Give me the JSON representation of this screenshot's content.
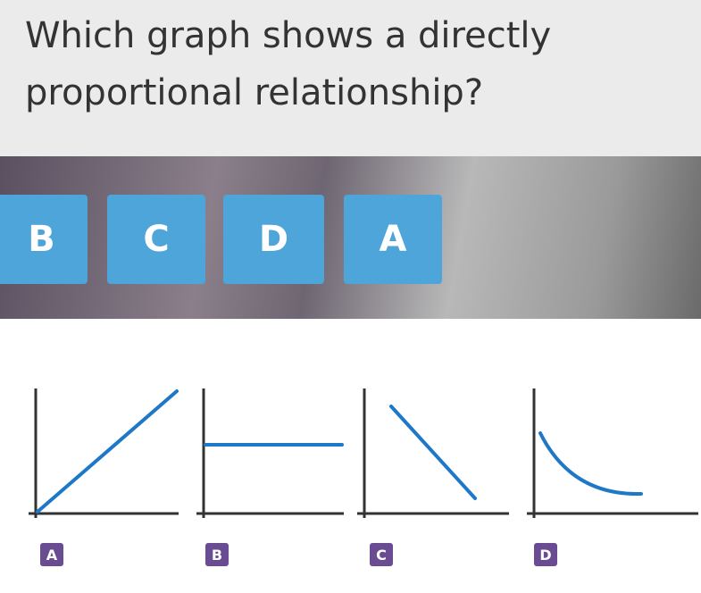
{
  "question": "Which graph shows a directly proportional relationship?",
  "answers": [
    "B",
    "C",
    "D",
    "A"
  ],
  "graphs": [
    "A",
    "B",
    "C",
    "D"
  ]
}
